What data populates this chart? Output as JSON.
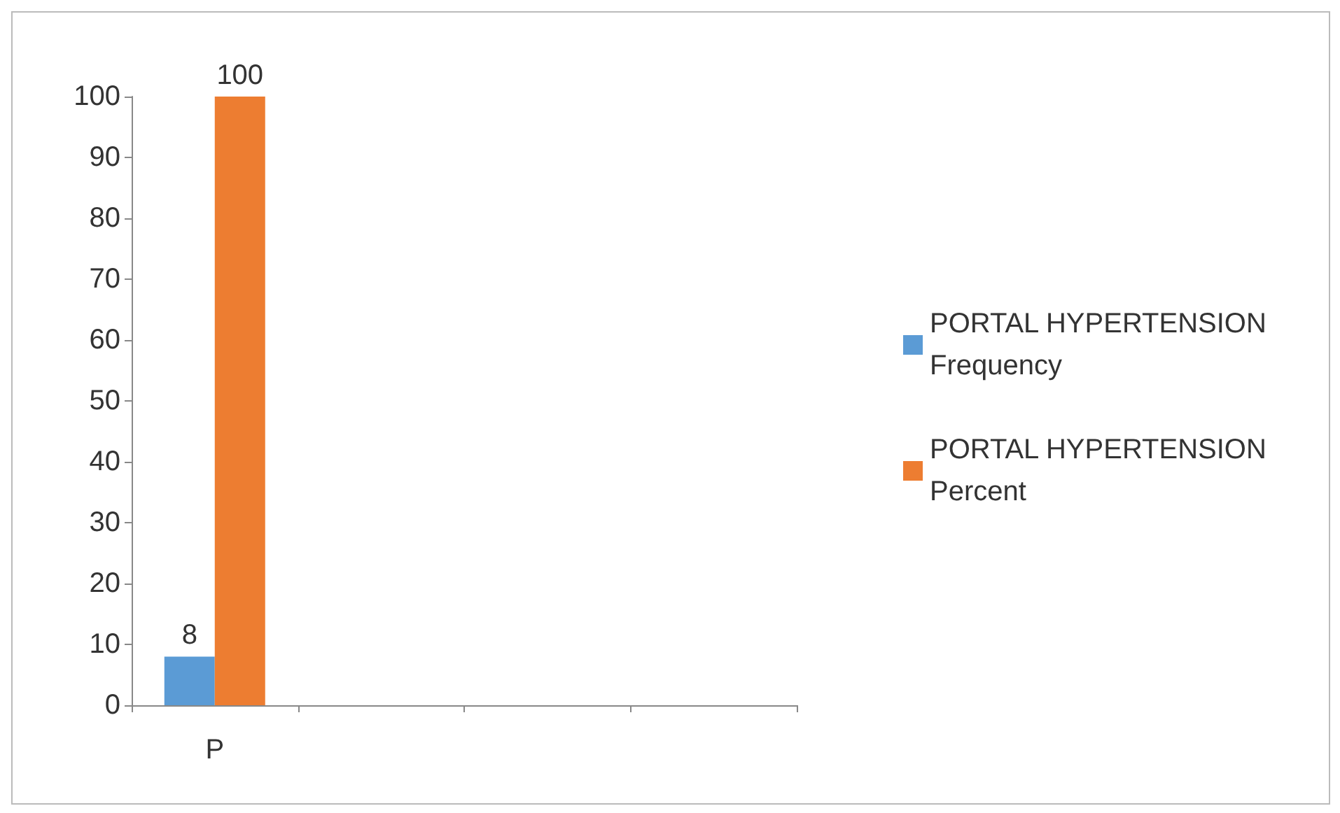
{
  "chart_data": {
    "type": "bar",
    "categories": [
      "P",
      null,
      null,
      null
    ],
    "series": [
      {
        "name": "PORTAL HYPERTENSION Frequency",
        "color": "#5b9bd5",
        "values": [
          8,
          null,
          null,
          null
        ]
      },
      {
        "name": "PORTAL HYPERTENSION Percent",
        "color": "#ed7d31",
        "values": [
          100,
          null,
          null,
          null
        ]
      }
    ],
    "ylim": [
      0,
      100
    ],
    "yticks": [
      0,
      10,
      20,
      30,
      40,
      50,
      60,
      70,
      80,
      90,
      100
    ],
    "grid": false,
    "legend": "right",
    "data_labels": true
  }
}
